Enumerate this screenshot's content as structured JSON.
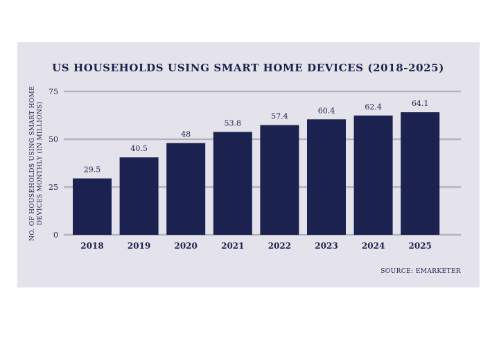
{
  "chart_data": {
    "type": "bar",
    "title": "US HOUSEHOLDS USING SMART HOME DEVICES (2018-2025)",
    "ylabel_lines": [
      "NO. OF HOUSEHOLDS USING SMART HOME",
      "DEVICES MONTHLY (IN MILLIONS)"
    ],
    "xlabel": "",
    "categories": [
      "2018",
      "2019",
      "2020",
      "2021",
      "2022",
      "2023",
      "2024",
      "2025"
    ],
    "values": [
      29.5,
      40.5,
      48,
      53.8,
      57.4,
      60.4,
      62.4,
      64.1
    ],
    "value_labels": [
      "29.5",
      "40.5",
      "48",
      "53.8",
      "57.4",
      "60.4",
      "62.4",
      "64.1"
    ],
    "ylim": [
      0,
      75
    ],
    "yticks": [
      0,
      25,
      50,
      75
    ],
    "grid": true,
    "legend": "none",
    "source": "SOURCE: EMARKETER",
    "colors": {
      "bar": "#1c2250",
      "grid": "#b4b2bd",
      "panel": "#e4e2ea",
      "text": "#1c2250"
    }
  }
}
